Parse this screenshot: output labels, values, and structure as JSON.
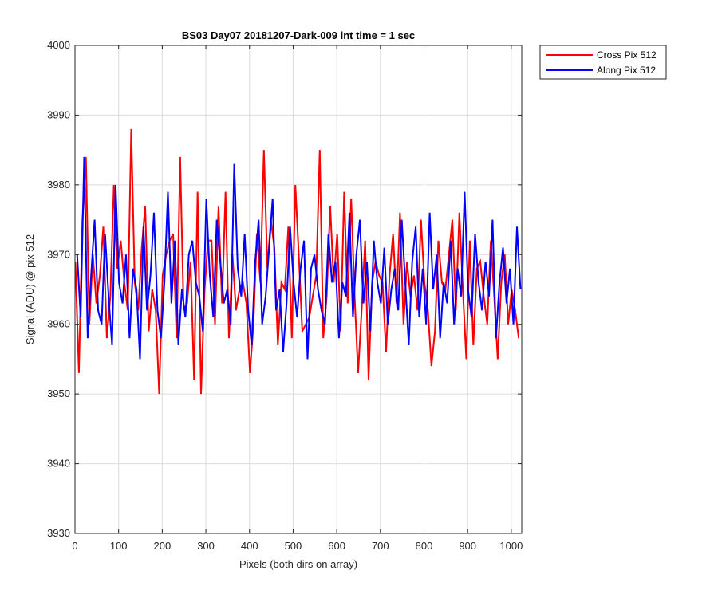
{
  "chart_data": {
    "type": "line",
    "title": "BS03 Day07 20181207-Dark-009 int time = 1 sec",
    "xlabel": "Pixels (both dirs on array)",
    "ylabel": "Signal (ADU) @ pix 512",
    "xlim": [
      0,
      1024
    ],
    "ylim": [
      3930,
      4000
    ],
    "xticks": [
      0,
      100,
      200,
      300,
      400,
      500,
      600,
      700,
      800,
      900,
      1000
    ],
    "yticks": [
      3930,
      3940,
      3950,
      3960,
      3970,
      3980,
      3990,
      4000
    ],
    "grid": true,
    "legend_position": "outside-top-right",
    "series": [
      {
        "name": "Cross Pix 512",
        "color": "#ff0000",
        "x_start": 1,
        "x_step": 8,
        "values": [
          3969,
          3953,
          3975,
          3984,
          3960,
          3970,
          3963,
          3967,
          3974,
          3958,
          3964,
          3980,
          3968,
          3972,
          3966,
          3962,
          3988,
          3966,
          3962,
          3971,
          3977,
          3959,
          3965,
          3962,
          3950,
          3967,
          3970,
          3972,
          3973,
          3958,
          3984,
          3962,
          3963,
          3969,
          3952,
          3979,
          3950,
          3965,
          3972,
          3972,
          3960,
          3977,
          3963,
          3979,
          3958,
          3970,
          3962,
          3965,
          3966,
          3963,
          3953,
          3960,
          3973,
          3966,
          3985,
          3968,
          3975,
          3971,
          3957,
          3966,
          3965,
          3974,
          3958,
          3980,
          3970,
          3959,
          3960,
          3961,
          3964,
          3967,
          3985,
          3958,
          3964,
          3977,
          3966,
          3973,
          3959,
          3979,
          3963,
          3978,
          3964,
          3953,
          3962,
          3972,
          3952,
          3966,
          3969,
          3967,
          3966,
          3956,
          3967,
          3973,
          3963,
          3976,
          3960,
          3969,
          3964,
          3967,
          3962,
          3975,
          3966,
          3962,
          3954,
          3959,
          3972,
          3966,
          3965,
          3970,
          3975,
          3962,
          3976,
          3965,
          3955,
          3972,
          3957,
          3968,
          3969,
          3964,
          3960,
          3972,
          3964,
          3955,
          3966,
          3970,
          3960,
          3965,
          3962,
          3958
        ]
      },
      {
        "name": "Along Pix 512",
        "color": "#0000ff",
        "x_start": 5,
        "x_step": 8,
        "values": [
          3970,
          3961,
          3984,
          3958,
          3967,
          3975,
          3962,
          3960,
          3973,
          3964,
          3957,
          3980,
          3966,
          3963,
          3970,
          3958,
          3968,
          3965,
          3955,
          3974,
          3962,
          3967,
          3976,
          3962,
          3958,
          3966,
          3979,
          3963,
          3972,
          3957,
          3965,
          3961,
          3970,
          3972,
          3966,
          3964,
          3959,
          3978,
          3967,
          3961,
          3975,
          3969,
          3963,
          3965,
          3960,
          3983,
          3968,
          3964,
          3973,
          3962,
          3957,
          3969,
          3975,
          3960,
          3964,
          3971,
          3978,
          3962,
          3965,
          3956,
          3963,
          3974,
          3966,
          3961,
          3968,
          3972,
          3955,
          3968,
          3970,
          3965,
          3962,
          3960,
          3973,
          3966,
          3969,
          3958,
          3966,
          3964,
          3976,
          3961,
          3970,
          3975,
          3963,
          3969,
          3959,
          3972,
          3966,
          3963,
          3971,
          3960,
          3965,
          3968,
          3962,
          3975,
          3966,
          3957,
          3969,
          3974,
          3961,
          3968,
          3960,
          3976,
          3965,
          3970,
          3958,
          3966,
          3963,
          3972,
          3960,
          3968,
          3964,
          3979,
          3965,
          3961,
          3973,
          3966,
          3962,
          3969,
          3964,
          3975,
          3958,
          3966,
          3971,
          3963,
          3968,
          3960,
          3974,
          3965
        ]
      }
    ]
  },
  "legend": {
    "cross_label": "Cross Pix 512",
    "along_label": "Along Pix 512"
  }
}
